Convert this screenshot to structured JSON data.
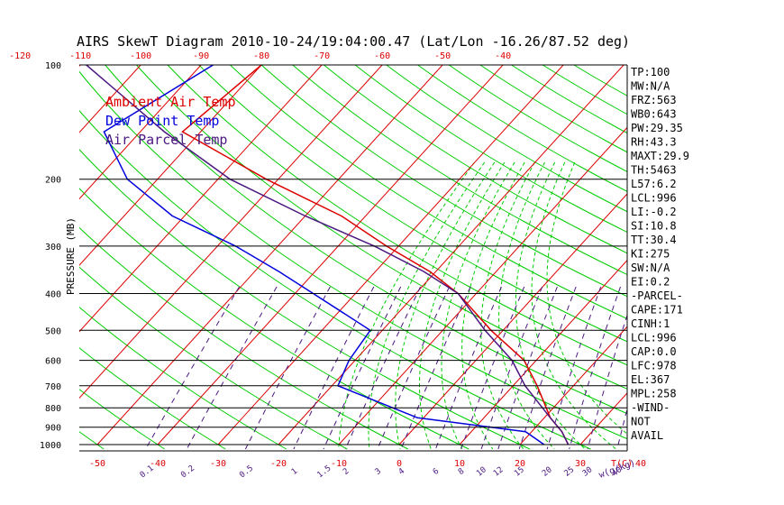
{
  "chart_data": {
    "type": "line",
    "title": "AIRS SkewT Diagram 2010-10-24/19:04:00.47 (Lat/Lon -16.26/87.52 deg)",
    "ylabel": "PRESSURE (MB)",
    "xlabel_bottom": "T(C)",
    "mixing_ratio_label": "w(g/kg)",
    "y_scale": "log",
    "ylim": [
      1000,
      100
    ],
    "pressure_ticks": [
      "100",
      "200",
      "300",
      "400",
      "500",
      "600",
      "700",
      "800",
      "900",
      "1000"
    ],
    "pressure_values": [
      100,
      200,
      300,
      400,
      500,
      600,
      700,
      800,
      900,
      1000
    ],
    "top_temp_ticks": [
      "-120",
      "-110",
      "-100",
      "-90",
      "-80",
      "-70",
      "-60",
      "-50",
      "-40"
    ],
    "bottom_temp_ticks": [
      "-50",
      "-40",
      "-30",
      "-20",
      "-10",
      "0",
      "10",
      "20",
      "30",
      "40"
    ],
    "mixing_ratio_ticks": [
      "0.1",
      "0.2",
      "0.5",
      "1",
      "1.5",
      "2",
      "3",
      "4",
      "6",
      "8",
      "10",
      "12",
      "15",
      "20",
      "25",
      "30",
      "40"
    ],
    "legend": [
      {
        "label": "Ambient Air Temp",
        "color": "#dd0000"
      },
      {
        "label": "Dew Point Temp",
        "color": "#0000dd"
      },
      {
        "label": "Air Parcel Temp",
        "color": "#4b1780"
      }
    ],
    "series": [
      {
        "name": "Ambient Air Temp",
        "color": "#dd0000",
        "points": [
          [
            100,
            -80
          ],
          [
            150,
            -83
          ],
          [
            200,
            -62
          ],
          [
            250,
            -44
          ],
          [
            300,
            -32
          ],
          [
            350,
            -21
          ],
          [
            400,
            -13
          ],
          [
            500,
            -2
          ],
          [
            600,
            8
          ],
          [
            700,
            14
          ],
          [
            850,
            21
          ],
          [
            925,
            25
          ],
          [
            1000,
            28
          ]
        ]
      },
      {
        "name": "Dew Point Temp",
        "color": "#0000dd",
        "points": [
          [
            100,
            -88
          ],
          [
            150,
            -96
          ],
          [
            200,
            -85
          ],
          [
            250,
            -72
          ],
          [
            300,
            -57
          ],
          [
            350,
            -46
          ],
          [
            400,
            -37
          ],
          [
            500,
            -22
          ],
          [
            600,
            -21
          ],
          [
            700,
            -19
          ],
          [
            850,
            -1
          ],
          [
            925,
            19
          ],
          [
            1000,
            24
          ]
        ]
      },
      {
        "name": "Air Parcel Temp",
        "color": "#4b1780",
        "points": [
          [
            100,
            -109
          ],
          [
            150,
            -86
          ],
          [
            200,
            -68
          ],
          [
            250,
            -50
          ],
          [
            300,
            -34
          ],
          [
            350,
            -22
          ],
          [
            400,
            -13
          ],
          [
            500,
            -3
          ],
          [
            600,
            6
          ],
          [
            700,
            12
          ],
          [
            850,
            21
          ],
          [
            925,
            25
          ],
          [
            1000,
            28
          ]
        ]
      }
    ],
    "colors": {
      "isotherm": "#dd0000",
      "dry_adiabat": "#00cc00",
      "moist_adiabat": "#00cc00",
      "mixing_ratio": "#4b1780"
    },
    "indices": [
      "TP:100",
      "MW:N/A",
      "FRZ:563",
      "WB0:643",
      "PW:29.35",
      "RH:43.3",
      "MAXT:29.9",
      "TH:5463",
      "L57:6.2",
      "LCL:996",
      "LI:-0.2",
      "SI:10.8",
      "TT:30.4",
      "KI:275",
      "SW:N/A",
      "EI:0.2",
      "-PARCEL-",
      "CAPE:171",
      "CINH:1",
      "LCL:996",
      "CAP:0.0",
      "LFC:978",
      "EL:367",
      "MPL:258",
      "-WIND-",
      "NOT",
      "AVAIL"
    ]
  }
}
